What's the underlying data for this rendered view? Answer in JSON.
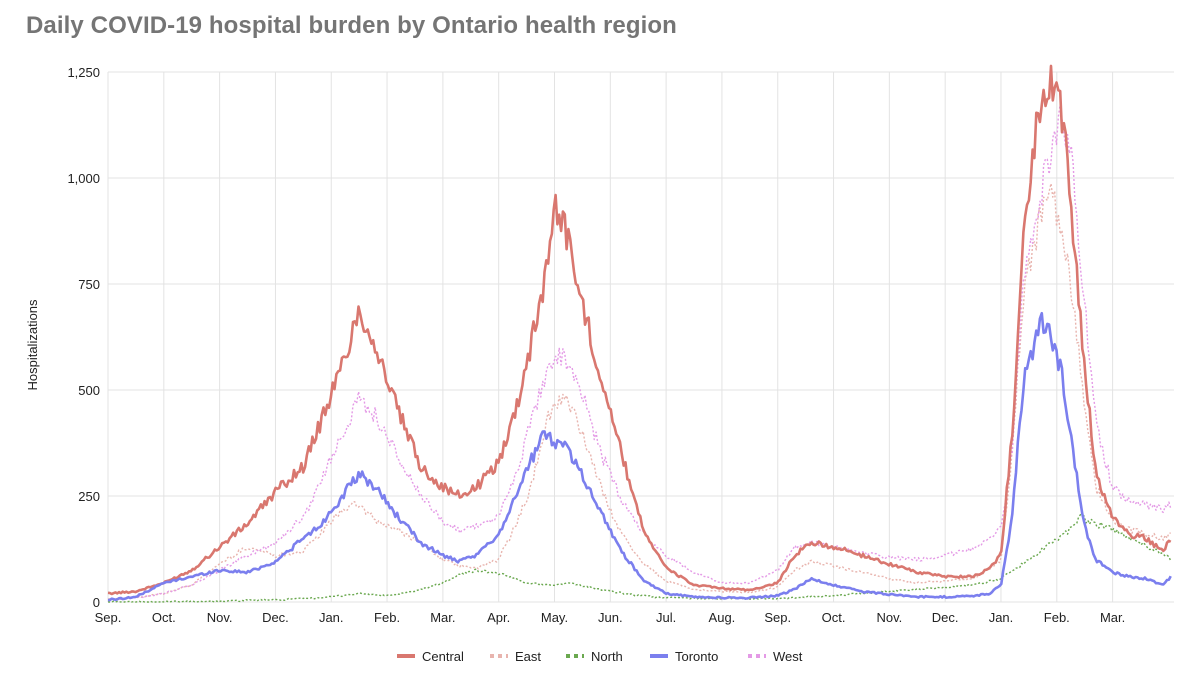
{
  "chart_data": {
    "type": "line",
    "title": "Daily COVID-19 hospital burden by Ontario health region",
    "xlabel": "",
    "ylabel": "Hospitalizations",
    "ylim": [
      0,
      1250
    ],
    "yticks": [
      0,
      250,
      500,
      750,
      1000,
      1250
    ],
    "ytick_labels": [
      "0",
      "250",
      "500",
      "750",
      "1,000",
      "1,250"
    ],
    "x_unit": "months since start of Sep.",
    "xlim": [
      0,
      19.1
    ],
    "xtick_positions": [
      0,
      1,
      2,
      3,
      4,
      5,
      6,
      7,
      8,
      9,
      10,
      11,
      12,
      13,
      14,
      15,
      16,
      17,
      18
    ],
    "xtick_labels": [
      "Sep.",
      "Oct.",
      "Nov.",
      "Dec.",
      "Jan.",
      "Feb.",
      "Mar.",
      "Apr.",
      "May.",
      "Jun.",
      "Jul.",
      "Aug.",
      "Sep.",
      "Oct.",
      "Nov.",
      "Dec.",
      "Jan.",
      "Feb.",
      "Mar."
    ],
    "grid": true,
    "legend_position": "bottom",
    "series": [
      {
        "name": "Central",
        "color": "#d9776f",
        "style": "solid",
        "x": [
          0,
          0.5,
          1,
          1.5,
          2,
          2.5,
          3,
          3.5,
          3.8,
          4.2,
          4.5,
          4.8,
          5.2,
          5.6,
          6,
          6.3,
          6.6,
          7,
          7.3,
          7.6,
          7.85,
          8,
          8.2,
          8.5,
          8.8,
          9.2,
          9.6,
          10,
          10.5,
          11,
          11.5,
          12,
          12.3,
          12.6,
          13,
          13.5,
          14,
          14.5,
          15,
          15.5,
          15.8,
          16,
          16.2,
          16.4,
          16.65,
          16.75,
          16.9,
          17.1,
          17.3,
          17.5,
          17.7,
          18,
          18.3,
          18.6,
          18.9,
          19.05
        ],
        "y": [
          20,
          25,
          45,
          75,
          130,
          185,
          260,
          320,
          420,
          560,
          690,
          600,
          450,
          320,
          270,
          250,
          270,
          330,
          450,
          620,
          780,
          940,
          880,
          700,
          550,
          350,
          170,
          80,
          40,
          32,
          28,
          45,
          110,
          140,
          130,
          110,
          90,
          70,
          60,
          60,
          80,
          110,
          400,
          850,
          1130,
          1180,
          1240,
          1150,
          870,
          550,
          300,
          200,
          160,
          150,
          120,
          150
        ]
      },
      {
        "name": "East",
        "color": "#e8b4ae",
        "style": "dotted",
        "x": [
          0,
          0.5,
          1,
          1.5,
          2,
          2.5,
          3,
          3.5,
          3.8,
          4.2,
          4.5,
          4.8,
          5.2,
          5.6,
          6,
          6.3,
          6.6,
          7,
          7.3,
          7.6,
          7.85,
          8,
          8.2,
          8.5,
          8.8,
          9.2,
          9.6,
          10,
          10.5,
          11,
          11.5,
          12,
          12.3,
          12.6,
          13,
          13.5,
          14,
          14.5,
          15,
          15.5,
          15.8,
          16,
          16.2,
          16.4,
          16.65,
          16.75,
          16.9,
          17.1,
          17.3,
          17.5,
          17.7,
          18,
          18.3,
          18.6,
          18.9,
          19.05
        ],
        "y": [
          8,
          10,
          20,
          40,
          90,
          130,
          110,
          120,
          160,
          220,
          230,
          190,
          170,
          140,
          100,
          85,
          80,
          100,
          180,
          280,
          420,
          470,
          480,
          400,
          280,
          160,
          90,
          50,
          30,
          25,
          22,
          35,
          75,
          95,
          85,
          70,
          55,
          45,
          50,
          55,
          80,
          100,
          350,
          720,
          880,
          930,
          960,
          880,
          700,
          450,
          270,
          190,
          170,
          160,
          150,
          160
        ]
      },
      {
        "name": "North",
        "color": "#6aa84f",
        "style": "dotted",
        "x": [
          0,
          1,
          2,
          3,
          3.5,
          4,
          4.5,
          5,
          5.5,
          6,
          6.3,
          6.6,
          6.9,
          7.2,
          7.5,
          8,
          8.3,
          8.6,
          9,
          9.5,
          10,
          11,
          12,
          13,
          14,
          15,
          15.5,
          16,
          16.4,
          16.8,
          17.2,
          17.4,
          17.7,
          18,
          18.5,
          19.05
        ],
        "y": [
          0,
          0,
          2,
          5,
          8,
          12,
          20,
          15,
          25,
          45,
          65,
          75,
          70,
          60,
          45,
          40,
          45,
          35,
          25,
          15,
          10,
          8,
          8,
          15,
          25,
          35,
          40,
          55,
          90,
          130,
          165,
          200,
          185,
          170,
          140,
          100
        ]
      },
      {
        "name": "Toronto",
        "color": "#7b7fee",
        "style": "solid",
        "x": [
          0,
          0.5,
          1,
          1.5,
          2,
          2.5,
          3,
          3.5,
          3.8,
          4.2,
          4.5,
          4.8,
          5.2,
          5.6,
          6,
          6.3,
          6.6,
          7,
          7.3,
          7.6,
          7.85,
          8,
          8.2,
          8.5,
          8.8,
          9.2,
          9.6,
          10,
          10.5,
          11,
          11.5,
          12,
          12.3,
          12.6,
          13,
          13.5,
          14,
          14.5,
          15,
          15.5,
          15.8,
          16,
          16.2,
          16.4,
          16.65,
          16.75,
          16.9,
          17.1,
          17.3,
          17.5,
          17.7,
          18,
          18.3,
          18.6,
          18.9,
          19.05
        ],
        "y": [
          5,
          12,
          45,
          60,
          75,
          70,
          95,
          150,
          180,
          250,
          300,
          270,
          200,
          140,
          110,
          95,
          110,
          160,
          250,
          340,
          400,
          380,
          370,
          300,
          220,
          120,
          50,
          20,
          12,
          10,
          10,
          15,
          30,
          55,
          40,
          25,
          18,
          12,
          12,
          14,
          20,
          40,
          200,
          520,
          640,
          660,
          620,
          530,
          350,
          180,
          100,
          70,
          60,
          55,
          40,
          60
        ]
      },
      {
        "name": "West",
        "color": "#e49ae6",
        "style": "dotted",
        "x": [
          0,
          0.5,
          1,
          1.5,
          2,
          2.5,
          3,
          3.5,
          3.8,
          4.2,
          4.5,
          4.8,
          5.2,
          5.6,
          6,
          6.3,
          6.6,
          7,
          7.3,
          7.6,
          7.85,
          8,
          8.2,
          8.5,
          8.8,
          9.2,
          9.6,
          10,
          10.5,
          11,
          11.5,
          12,
          12.3,
          12.6,
          13,
          13.5,
          14,
          14.5,
          15,
          15.5,
          15.8,
          16,
          16.2,
          16.4,
          16.65,
          16.75,
          16.9,
          17.1,
          17.3,
          17.5,
          17.7,
          18,
          18.3,
          18.6,
          18.9,
          19.05
        ],
        "y": [
          5,
          10,
          20,
          40,
          75,
          110,
          140,
          200,
          280,
          400,
          480,
          440,
          340,
          250,
          190,
          170,
          180,
          200,
          300,
          430,
          540,
          590,
          570,
          490,
          360,
          240,
          160,
          110,
          70,
          45,
          45,
          75,
          130,
          140,
          130,
          115,
          105,
          100,
          110,
          125,
          150,
          175,
          350,
          750,
          900,
          980,
          1050,
          1150,
          1000,
          700,
          420,
          270,
          240,
          230,
          220,
          230
        ]
      }
    ]
  }
}
